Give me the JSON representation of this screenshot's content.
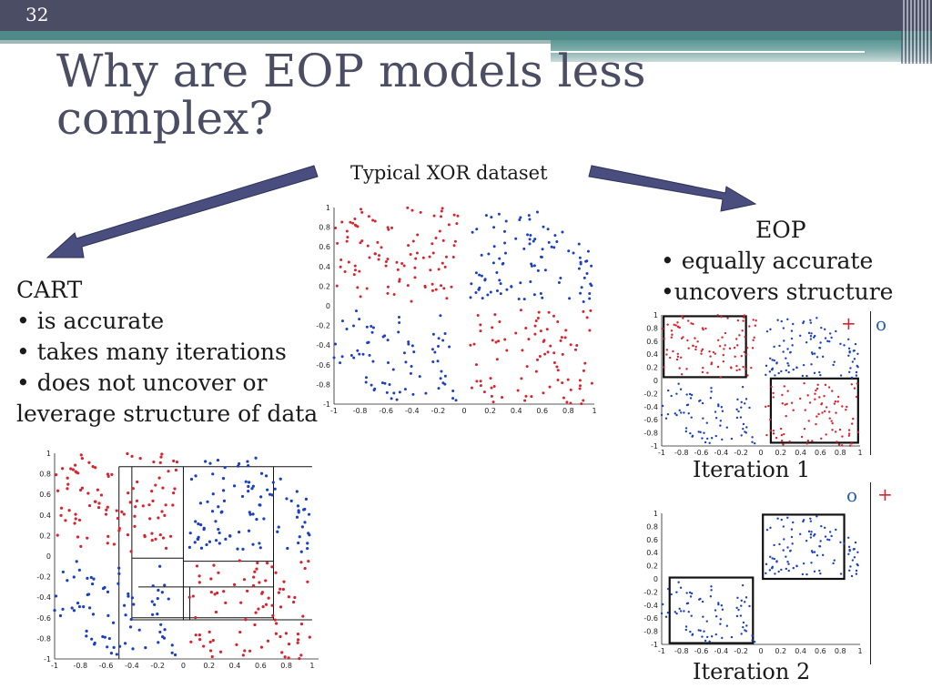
{
  "slide": {
    "number": "32",
    "title": "Why are EOP models less complex?"
  },
  "xor_label": "Typical XOR dataset",
  "cart": {
    "heading": "CART",
    "bullets": [
      "• is accurate",
      "• takes many iterations",
      "• does not uncover or",
      "leverage structure of data"
    ]
  },
  "eop": {
    "heading": "EOP",
    "bullets": [
      "• equally accurate",
      "•uncovers structure"
    ]
  },
  "iterations": [
    {
      "label": "Iteration 1",
      "left_sign": "+",
      "right_sign": "o"
    },
    {
      "label": "Iteration 2",
      "left_sign": "o",
      "right_sign": "+"
    }
  ],
  "colors": {
    "red": "#d9232e",
    "blue": "#1a3fc4",
    "arrow": "#4a4e7e",
    "plus_red": "#d9232e",
    "o_blue": "#2a5fae"
  },
  "chart_data": {
    "type": "scatter",
    "xlim": [
      -1,
      1
    ],
    "ylim": [
      -1,
      1
    ],
    "x_ticks": [
      "-1",
      "-0.8",
      "-0.6",
      "-0.4",
      "-0.2",
      "0",
      "0.2",
      "0.4",
      "0.6",
      "0.8",
      "1"
    ],
    "y_ticks": [
      "1",
      "0.8",
      "0.6",
      "0.4",
      "0.2",
      "0",
      "-0.2",
      "-0.4",
      "-0.6",
      "-0.8",
      "-1"
    ],
    "series": [
      {
        "color": "red",
        "region": "top-left quadrant (x<0, y>0) and bottom-right quadrant (x>0, y<0)"
      },
      {
        "color": "blue",
        "region": "top-right quadrant (x>0, y>0) and bottom-left quadrant (x<0, y<0)"
      }
    ]
  }
}
